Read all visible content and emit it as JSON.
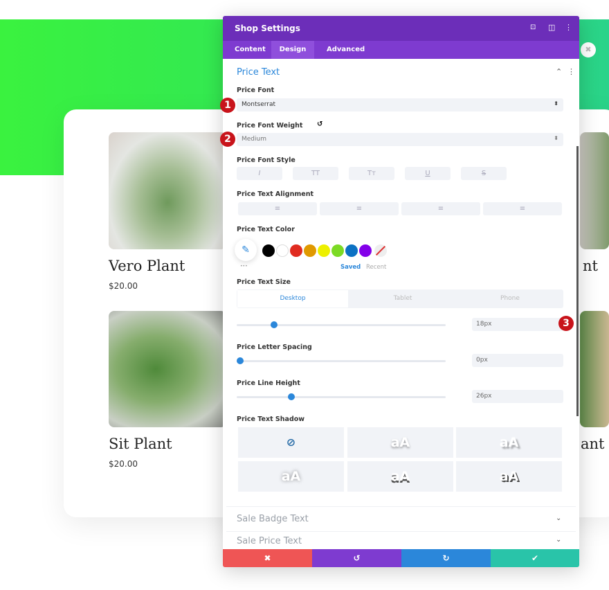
{
  "products": [
    {
      "title": "Vero Plant",
      "price": "$20.00"
    },
    {
      "title": "Sit Plant",
      "price": "$20.00"
    }
  ],
  "partial_titles": [
    "nt",
    "ant"
  ],
  "panel": {
    "title": "Shop Settings",
    "tabs": [
      "Content",
      "Design",
      "Advanced"
    ],
    "active_tab": "Design",
    "section": "Price Text",
    "price_font": {
      "label": "Price Font",
      "value": "Montserrat"
    },
    "price_font_weight": {
      "label": "Price Font Weight",
      "value": "Medium"
    },
    "price_font_style": {
      "label": "Price Font Style",
      "buttons": [
        "I",
        "TT",
        "Tт",
        "U",
        "S"
      ]
    },
    "alignment": {
      "label": "Price Text Alignment"
    },
    "color": {
      "label": "Price Text Color",
      "swatches": [
        "#000000",
        "#ffffff",
        "#e02b20",
        "#e09900",
        "#edf000",
        "#7cda24",
        "#0c71c3",
        "#8300e9"
      ],
      "saved": "Saved",
      "recent": "Recent",
      "more": "•••"
    },
    "size": {
      "label": "Price Text Size",
      "devices": [
        "Desktop",
        "Tablet",
        "Phone"
      ],
      "value": "18px",
      "slider_fraction": 0.18
    },
    "letter_spacing": {
      "label": "Price Letter Spacing",
      "value": "0px",
      "slider_fraction": 0.0
    },
    "line_height": {
      "label": "Price Line Height",
      "value": "26px",
      "slider_fraction": 0.26
    },
    "shadow": {
      "label": "Price Text Shadow",
      "sample": "aA"
    },
    "collapsed_sections": [
      "Sale Badge Text",
      "Sale Price Text"
    ],
    "footer": {
      "cancel": "✖",
      "undo": "↺",
      "redo": "↻",
      "save": "✔"
    },
    "colors": {
      "header": "#6c2eb9",
      "tabs": "#7e3bd0",
      "cancel": "#ef5555",
      "undo": "#7e3bd0",
      "redo": "#2b87da",
      "save": "#29c4a9",
      "accent": "#2b87da"
    }
  },
  "badges": [
    "1",
    "2",
    "3"
  ]
}
